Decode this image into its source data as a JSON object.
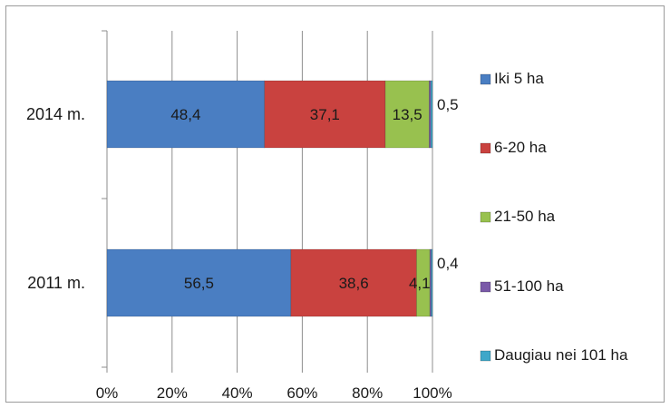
{
  "chart_data": {
    "type": "bar",
    "orientation": "horizontal",
    "stacked": "percent",
    "categories": [
      "2014 m.",
      "2011 m."
    ],
    "series": [
      {
        "name": "Iki 5 ha",
        "values": [
          48.4,
          56.5
        ],
        "labels": [
          "48,4",
          "56,5"
        ],
        "color": "#4a7ec2"
      },
      {
        "name": "6-20 ha",
        "values": [
          37.1,
          38.6
        ],
        "labels": [
          "37,1",
          "38,6"
        ],
        "color": "#c9423f"
      },
      {
        "name": "21-50 ha",
        "values": [
          13.5,
          4.1
        ],
        "labels": [
          "13,5",
          "4,1"
        ],
        "color": "#98c14f"
      },
      {
        "name": "51-100 ha",
        "values": [
          0.5,
          0.4
        ],
        "labels": [
          "0,5",
          "0,4"
        ],
        "color": "#7a5aa8"
      },
      {
        "name": "Daugiau nei 101 ha",
        "values": [
          0.5,
          0.4
        ],
        "labels": [
          "",
          ""
        ],
        "color": "#3fa7c9"
      }
    ],
    "xaxis": {
      "ticks": [
        "0%",
        "20%",
        "40%",
        "60%",
        "80%",
        "100%"
      ],
      "range": [
        0,
        100
      ]
    },
    "grid": true,
    "legend_position": "right"
  }
}
